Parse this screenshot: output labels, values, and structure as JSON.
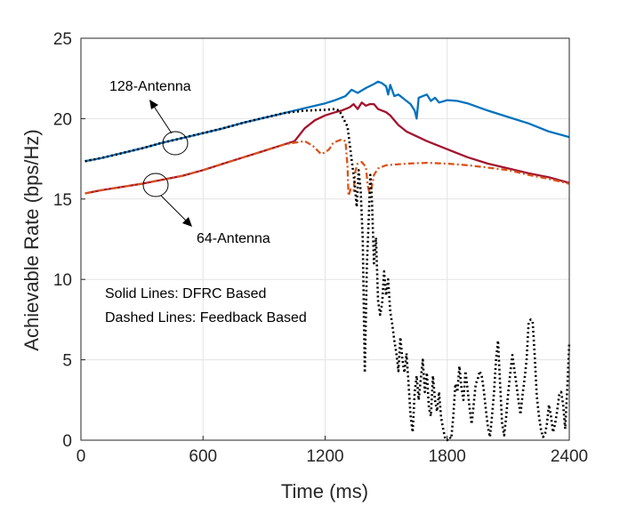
{
  "chart_data": {
    "type": "line",
    "xlabel": "Time (ms)",
    "ylabel": "Achievable Rate (bps/Hz)",
    "xlim": [
      0,
      2400
    ],
    "ylim": [
      0,
      25
    ],
    "xticks": [
      "0",
      "600",
      "1200",
      "1800",
      "2400"
    ],
    "yticks": [
      "0",
      "5",
      "10",
      "15",
      "20",
      "25"
    ],
    "xtick_values": [
      0,
      600,
      1200,
      1800,
      2400
    ],
    "ytick_values": [
      0,
      5,
      10,
      15,
      20,
      25
    ],
    "grid": true,
    "annotations": {
      "antenna_128": "128-Antenna",
      "antenna_64": "64-Antenna",
      "legend_solid": "Solid Lines: DFRC Based",
      "legend_dashed": "Dashed Lines: Feedback Based"
    },
    "series": [
      {
        "style": "solid",
        "color": "#0072BD",
        "points": [
          [
            20,
            17.35
          ],
          [
            100,
            17.55
          ],
          [
            200,
            17.85
          ],
          [
            300,
            18.15
          ],
          [
            400,
            18.5
          ],
          [
            500,
            18.8
          ],
          [
            600,
            19.1
          ],
          [
            700,
            19.4
          ],
          [
            800,
            19.75
          ],
          [
            900,
            20.05
          ],
          [
            1000,
            20.35
          ],
          [
            1100,
            20.65
          ],
          [
            1200,
            20.95
          ],
          [
            1250,
            21.15
          ],
          [
            1300,
            21.4
          ],
          [
            1330,
            21.8
          ],
          [
            1360,
            21.6
          ],
          [
            1400,
            21.9
          ],
          [
            1440,
            22.15
          ],
          [
            1460,
            22.3
          ],
          [
            1480,
            22.2
          ],
          [
            1500,
            22.0
          ],
          [
            1510,
            21.5
          ],
          [
            1520,
            22.1
          ],
          [
            1540,
            21.4
          ],
          [
            1560,
            21.5
          ],
          [
            1580,
            21.3
          ],
          [
            1600,
            21.1
          ],
          [
            1620,
            20.9
          ],
          [
            1640,
            20.5
          ],
          [
            1650,
            20.0
          ],
          [
            1660,
            21.3
          ],
          [
            1680,
            21.4
          ],
          [
            1700,
            21.5
          ],
          [
            1720,
            21.1
          ],
          [
            1740,
            21.3
          ],
          [
            1760,
            21.0
          ],
          [
            1800,
            21.15
          ],
          [
            1850,
            21.1
          ],
          [
            1900,
            20.95
          ],
          [
            2000,
            20.5
          ],
          [
            2100,
            20.1
          ],
          [
            2200,
            19.7
          ],
          [
            2300,
            19.2
          ],
          [
            2400,
            18.85
          ]
        ]
      },
      {
        "style": "solid",
        "color": "#A2142F",
        "points": [
          [
            20,
            15.35
          ],
          [
            100,
            15.55
          ],
          [
            200,
            15.75
          ],
          [
            300,
            15.95
          ],
          [
            400,
            16.2
          ],
          [
            500,
            16.45
          ],
          [
            600,
            16.8
          ],
          [
            700,
            17.2
          ],
          [
            800,
            17.6
          ],
          [
            900,
            18.0
          ],
          [
            1000,
            18.4
          ],
          [
            1050,
            18.6
          ],
          [
            1100,
            19.4
          ],
          [
            1150,
            19.9
          ],
          [
            1200,
            20.2
          ],
          [
            1250,
            20.4
          ],
          [
            1280,
            20.5
          ],
          [
            1300,
            20.6
          ],
          [
            1320,
            20.7
          ],
          [
            1340,
            20.9
          ],
          [
            1360,
            20.6
          ],
          [
            1380,
            21.0
          ],
          [
            1400,
            20.8
          ],
          [
            1420,
            20.9
          ],
          [
            1440,
            20.9
          ],
          [
            1460,
            20.6
          ],
          [
            1480,
            20.5
          ],
          [
            1500,
            20.4
          ],
          [
            1520,
            20.2
          ],
          [
            1540,
            19.9
          ],
          [
            1560,
            19.6
          ],
          [
            1600,
            19.2
          ],
          [
            1700,
            18.6
          ],
          [
            1800,
            18.1
          ],
          [
            1900,
            17.6
          ],
          [
            2000,
            17.2
          ],
          [
            2100,
            16.9
          ],
          [
            2200,
            16.6
          ],
          [
            2300,
            16.35
          ],
          [
            2400,
            16.0
          ]
        ]
      },
      {
        "style": "dashdot",
        "color": "#D95319",
        "points": [
          [
            20,
            15.35
          ],
          [
            100,
            15.55
          ],
          [
            200,
            15.75
          ],
          [
            300,
            15.95
          ],
          [
            400,
            16.2
          ],
          [
            500,
            16.45
          ],
          [
            600,
            16.8
          ],
          [
            700,
            17.2
          ],
          [
            800,
            17.6
          ],
          [
            900,
            18.0
          ],
          [
            1000,
            18.4
          ],
          [
            1050,
            18.5
          ],
          [
            1100,
            18.6
          ],
          [
            1140,
            18.3
          ],
          [
            1180,
            17.8
          ],
          [
            1200,
            17.9
          ],
          [
            1220,
            18.1
          ],
          [
            1240,
            18.5
          ],
          [
            1260,
            18.6
          ],
          [
            1280,
            18.7
          ],
          [
            1300,
            18.6
          ],
          [
            1310,
            17.0
          ],
          [
            1315,
            15.2
          ],
          [
            1325,
            15.6
          ],
          [
            1340,
            15.5
          ],
          [
            1350,
            16.8
          ],
          [
            1360,
            17.2
          ],
          [
            1380,
            17.3
          ],
          [
            1400,
            17.0
          ],
          [
            1410,
            15.8
          ],
          [
            1420,
            15.3
          ],
          [
            1430,
            15.8
          ],
          [
            1440,
            16.5
          ],
          [
            1460,
            16.9
          ],
          [
            1500,
            17.1
          ],
          [
            1600,
            17.2
          ],
          [
            1700,
            17.25
          ],
          [
            1800,
            17.2
          ],
          [
            1900,
            17.1
          ],
          [
            2000,
            16.95
          ],
          [
            2100,
            16.8
          ],
          [
            2200,
            16.5
          ],
          [
            2300,
            16.25
          ],
          [
            2400,
            15.95
          ]
        ]
      },
      {
        "style": "dotted",
        "color": "#000000",
        "points": [
          [
            20,
            17.35
          ],
          [
            100,
            17.55
          ],
          [
            200,
            17.85
          ],
          [
            300,
            18.15
          ],
          [
            400,
            18.5
          ],
          [
            500,
            18.8
          ],
          [
            600,
            19.1
          ],
          [
            700,
            19.4
          ],
          [
            800,
            19.75
          ],
          [
            900,
            20.05
          ],
          [
            1000,
            20.35
          ],
          [
            1100,
            20.5
          ],
          [
            1200,
            20.55
          ],
          [
            1250,
            20.6
          ],
          [
            1270,
            20.5
          ],
          [
            1290,
            20.0
          ],
          [
            1310,
            19.5
          ],
          [
            1330,
            17.5
          ],
          [
            1345,
            16.0
          ],
          [
            1355,
            14.5
          ],
          [
            1365,
            16.8
          ],
          [
            1375,
            15.5
          ],
          [
            1385,
            12.5
          ],
          [
            1395,
            4.2
          ],
          [
            1405,
            10.8
          ],
          [
            1415,
            14.0
          ],
          [
            1422,
            16.5
          ],
          [
            1430,
            15.0
          ],
          [
            1440,
            11.0
          ],
          [
            1450,
            12.6
          ],
          [
            1460,
            8.7
          ],
          [
            1470,
            7.8
          ],
          [
            1480,
            8.5
          ],
          [
            1490,
            10.5
          ],
          [
            1500,
            9.0
          ],
          [
            1510,
            10.0
          ],
          [
            1520,
            8.0
          ],
          [
            1530,
            7.2
          ],
          [
            1540,
            6.2
          ],
          [
            1550,
            5.4
          ],
          [
            1560,
            4.3
          ],
          [
            1570,
            6.4
          ],
          [
            1580,
            5.0
          ],
          [
            1590,
            4.2
          ],
          [
            1600,
            5.4
          ],
          [
            1610,
            3.5
          ],
          [
            1620,
            1.5
          ],
          [
            1630,
            0.5
          ],
          [
            1640,
            3.0
          ],
          [
            1650,
            4.0
          ],
          [
            1660,
            2.5
          ],
          [
            1670,
            3.8
          ],
          [
            1680,
            5.0
          ],
          [
            1690,
            3.0
          ],
          [
            1700,
            4.2
          ],
          [
            1710,
            2.0
          ],
          [
            1720,
            1.5
          ],
          [
            1730,
            4.0
          ],
          [
            1740,
            2.5
          ],
          [
            1750,
            1.8
          ],
          [
            1760,
            3.0
          ],
          [
            1770,
            1.4
          ],
          [
            1780,
            0.7
          ],
          [
            1790,
            0.1
          ],
          [
            1800,
            0.0
          ],
          [
            1810,
            0.2
          ],
          [
            1820,
            0.1
          ],
          [
            1830,
            1.5
          ],
          [
            1840,
            3.5
          ],
          [
            1850,
            3.0
          ],
          [
            1860,
            4.6
          ],
          [
            1870,
            3.2
          ],
          [
            1880,
            2.5
          ],
          [
            1890,
            4.3
          ],
          [
            1900,
            3.2
          ],
          [
            1910,
            2.0
          ],
          [
            1920,
            1.0
          ],
          [
            1930,
            2.2
          ],
          [
            1940,
            3.5
          ],
          [
            1950,
            3.8
          ],
          [
            1960,
            4.3
          ],
          [
            1970,
            4.0
          ],
          [
            1980,
            3.1
          ],
          [
            1990,
            1.9
          ],
          [
            2000,
            0.8
          ],
          [
            2010,
            0.2
          ],
          [
            2020,
            1.5
          ],
          [
            2030,
            3.0
          ],
          [
            2040,
            5.0
          ],
          [
            2050,
            6.2
          ],
          [
            2060,
            3.5
          ],
          [
            2070,
            1.0
          ],
          [
            2080,
            0.3
          ],
          [
            2090,
            1.5
          ],
          [
            2100,
            3.0
          ],
          [
            2110,
            4.2
          ],
          [
            2120,
            5.3
          ],
          [
            2130,
            4.4
          ],
          [
            2140,
            3.5
          ],
          [
            2150,
            2.5
          ],
          [
            2160,
            1.6
          ],
          [
            2170,
            2.8
          ],
          [
            2180,
            3.8
          ],
          [
            2190,
            5.0
          ],
          [
            2200,
            7.3
          ],
          [
            2210,
            7.5
          ],
          [
            2220,
            7.4
          ],
          [
            2230,
            5.3
          ],
          [
            2240,
            2.8
          ],
          [
            2250,
            1.6
          ],
          [
            2260,
            0.7
          ],
          [
            2270,
            0.2
          ],
          [
            2280,
            0.3
          ],
          [
            2290,
            1.0
          ],
          [
            2300,
            2.2
          ],
          [
            2310,
            1.5
          ],
          [
            2320,
            0.5
          ],
          [
            2330,
            1.0
          ],
          [
            2340,
            1.8
          ],
          [
            2350,
            2.8
          ],
          [
            2360,
            3.0
          ],
          [
            2370,
            2.2
          ],
          [
            2380,
            0.7
          ],
          [
            2390,
            3.2
          ],
          [
            2400,
            6.1
          ]
        ]
      }
    ]
  }
}
